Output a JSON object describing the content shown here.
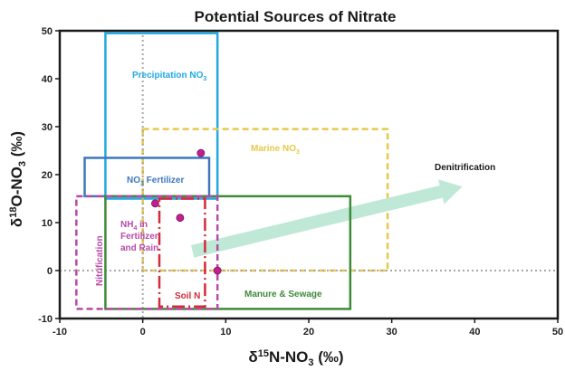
{
  "chart_data": {
    "type": "scatter",
    "title": "Potential Sources of Nitrate",
    "xlabel": "δ15N-NO3 (‰)",
    "ylabel": "δ18O-NO3 (‰)",
    "xlim": [
      -10,
      50
    ],
    "ylim": [
      -10,
      50
    ],
    "x_ticks": [
      -10,
      0,
      10,
      20,
      30,
      40,
      50
    ],
    "y_ticks": [
      -10,
      0,
      10,
      20,
      30,
      40,
      50
    ],
    "zero_lines": {
      "x": 0,
      "y": 0,
      "color": "#a8a8a8"
    },
    "regions": [
      {
        "key": "precipitation",
        "label": "Precipitation NO3",
        "x": [
          -4.5,
          9
        ],
        "y": [
          15,
          49.5
        ],
        "color": "#21a9e0",
        "style": "solid"
      },
      {
        "key": "marine",
        "label": "Marine NO3",
        "x": [
          0,
          29.5
        ],
        "y": [
          0,
          29.5
        ],
        "color": "#e8c84a",
        "style": "dashed"
      },
      {
        "key": "fertilizer",
        "label": "NO3 Fertilizer",
        "x": [
          -7,
          8
        ],
        "y": [
          15.5,
          23.5
        ],
        "color": "#3d78bd",
        "style": "solid"
      },
      {
        "key": "manure",
        "label": "Manure & Sewage",
        "x": [
          -4.5,
          25
        ],
        "y": [
          -8,
          15.5
        ],
        "color": "#3f8a38",
        "style": "solid"
      },
      {
        "key": "nh4",
        "label": "NH4 in Fertilizer and Rain",
        "x": [
          -8,
          9
        ],
        "y": [
          -8,
          15.5
        ],
        "color": "#b849a8",
        "style": "dashed"
      },
      {
        "key": "soil",
        "label": "Soil N",
        "x": [
          2,
          7.5
        ],
        "y": [
          -7.5,
          15
        ],
        "color": "#d42a3a",
        "style": "dashdot"
      }
    ],
    "arrows": [
      {
        "key": "denitrification",
        "label": "Denitrification",
        "from": [
          6,
          4
        ],
        "to": [
          38.5,
          17.5
        ],
        "color": "#bfe9d6"
      },
      {
        "key": "nitrification",
        "label": "Nitrification",
        "color": "#b849a8"
      }
    ],
    "points": {
      "color": "#c2208f",
      "values": [
        {
          "x": 7,
          "y": 24.5
        },
        {
          "x": 1.5,
          "y": 14
        },
        {
          "x": 4.5,
          "y": 11
        },
        {
          "x": 9,
          "y": 0
        }
      ]
    },
    "grid": false
  }
}
